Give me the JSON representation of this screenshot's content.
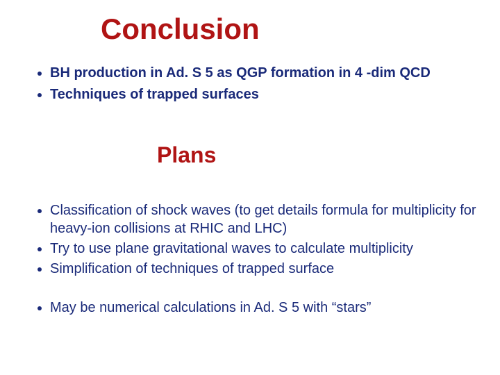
{
  "colors": {
    "title": "#b01414",
    "subtitle": "#b01414",
    "body": "#1a2a79",
    "background": "#ffffff"
  },
  "title": {
    "text": "Conclusion",
    "fontsize": 42,
    "weight": "bold"
  },
  "list_a": {
    "fontsize": 20,
    "weight": "bold",
    "items": [
      "BH production in Ad. S 5  as QGP formation in 4 -dim QCD",
      "Techniques of trapped surfaces"
    ]
  },
  "subtitle": {
    "text": "Plans",
    "fontsize": 32,
    "weight": "bold"
  },
  "list_b": {
    "fontsize": 20,
    "weight": "normal",
    "items": [
      "Classification of shock waves (to get details formula for multiplicity for heavy-ion collisions at RHIC and LHC)",
      "Try to use  plane gravitational waves to calculate multiplicity",
      "Simplification of techniques of trapped surface"
    ]
  },
  "list_c": {
    "fontsize": 20,
    "weight": "normal",
    "items": [
      "May be numerical calculations in Ad. S 5 with “stars”"
    ]
  }
}
